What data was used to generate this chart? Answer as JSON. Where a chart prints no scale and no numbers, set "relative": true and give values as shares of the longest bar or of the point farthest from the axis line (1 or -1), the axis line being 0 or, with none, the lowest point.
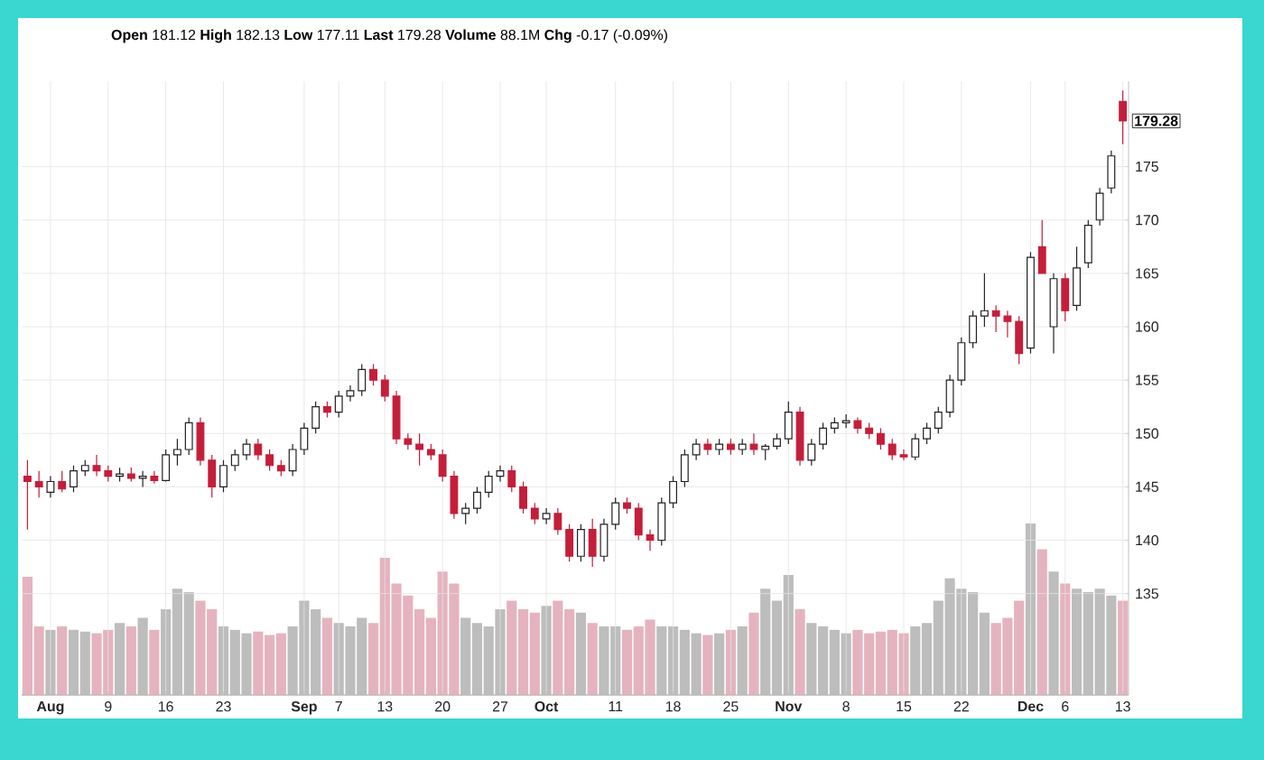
{
  "chart_data": [
    {
      "type": "candlestick",
      "categories": [
        null,
        null,
        "**Aug**",
        null,
        null,
        null,
        null,
        "9",
        null,
        null,
        null,
        null,
        "16",
        null,
        null,
        null,
        null,
        "23",
        null,
        null,
        null,
        null,
        null,
        null,
        "**Sep**",
        null,
        null,
        "7",
        null,
        null,
        null,
        "13",
        null,
        null,
        null,
        null,
        "20",
        null,
        null,
        null,
        null,
        "27",
        null,
        null,
        null,
        "**Oct**",
        null,
        null,
        null,
        null,
        null,
        "11",
        null,
        null,
        null,
        null,
        "18",
        null,
        null,
        null,
        null,
        "25",
        null,
        null,
        null,
        null,
        "**Nov**",
        null,
        null,
        null,
        null,
        "8",
        null,
        null,
        null,
        null,
        "15",
        null,
        null,
        null,
        null,
        "22",
        null,
        null,
        null,
        null,
        null,
        "**Dec**",
        null,
        null,
        "6",
        null,
        null,
        null,
        null,
        "13"
      ],
      "ohlc": [
        [
          146,
          147.5,
          141,
          145.5
        ],
        [
          145.5,
          146.5,
          144,
          145
        ],
        [
          144.5,
          146,
          144,
          145.5
        ],
        [
          145.5,
          146.5,
          144.5,
          144.8
        ],
        [
          145,
          147,
          144.5,
          146.5
        ],
        [
          146.5,
          147.5,
          146,
          147
        ],
        [
          147,
          148,
          146,
          146.5
        ],
        [
          146.5,
          147,
          145.5,
          146
        ],
        [
          146,
          146.8,
          145.5,
          146.2
        ],
        [
          146.2,
          146.8,
          145.5,
          145.8
        ],
        [
          145.8,
          146.5,
          145,
          146
        ],
        [
          146,
          146.5,
          145.3,
          145.6
        ],
        [
          145.6,
          148.5,
          145.5,
          148
        ],
        [
          148,
          149.5,
          147,
          148.5
        ],
        [
          148.5,
          151.5,
          148,
          151
        ],
        [
          151,
          151.5,
          147,
          147.5
        ],
        [
          147.5,
          148,
          144,
          145
        ],
        [
          145,
          147.5,
          144.5,
          147
        ],
        [
          147,
          148.5,
          146.5,
          148
        ],
        [
          148,
          149.5,
          147.5,
          149
        ],
        [
          149,
          149.5,
          147.5,
          148
        ],
        [
          148,
          148.5,
          146.5,
          147
        ],
        [
          147,
          147.5,
          146,
          146.5
        ],
        [
          146.5,
          149,
          146,
          148.5
        ],
        [
          148.5,
          151,
          148,
          150.5
        ],
        [
          150.5,
          153,
          150,
          152.5
        ],
        [
          152.5,
          153,
          151.5,
          152
        ],
        [
          152,
          154,
          151.5,
          153.5
        ],
        [
          153.5,
          154.5,
          153,
          154
        ],
        [
          154,
          156.5,
          153.5,
          156
        ],
        [
          156,
          156.5,
          154.5,
          155
        ],
        [
          155,
          155.5,
          153,
          153.5
        ],
        [
          153.5,
          154,
          149,
          149.5
        ],
        [
          149.5,
          150,
          148.5,
          149
        ],
        [
          149,
          150,
          147,
          148.5
        ],
        [
          148.5,
          149,
          147.5,
          148
        ],
        [
          148,
          148.5,
          145.5,
          146
        ],
        [
          146,
          146.5,
          142,
          142.5
        ],
        [
          142.5,
          143.5,
          141.5,
          143
        ],
        [
          143,
          145,
          142.5,
          144.5
        ],
        [
          144.5,
          146.5,
          144,
          146
        ],
        [
          146,
          147,
          145.5,
          146.5
        ],
        [
          146.5,
          147,
          144.5,
          145
        ],
        [
          145,
          145.5,
          142.5,
          143
        ],
        [
          143,
          143.5,
          141.5,
          142
        ],
        [
          142,
          143,
          141.5,
          142.5
        ],
        [
          142.5,
          143,
          140.5,
          141
        ],
        [
          141,
          141.5,
          138,
          138.5
        ],
        [
          138.5,
          141.5,
          138,
          141
        ],
        [
          141,
          142,
          137.5,
          138.5
        ],
        [
          138.5,
          142,
          138,
          141.5
        ],
        [
          141.5,
          144,
          141,
          143.5
        ],
        [
          143.5,
          144,
          142.5,
          143
        ],
        [
          143,
          143.5,
          140,
          140.5
        ],
        [
          140.5,
          141,
          139,
          140
        ],
        [
          140,
          144,
          139.5,
          143.5
        ],
        [
          143.5,
          146,
          143,
          145.5
        ],
        [
          145.5,
          148.5,
          145,
          148
        ],
        [
          148,
          149.5,
          147.5,
          149
        ],
        [
          149,
          149.5,
          148,
          148.5
        ],
        [
          148.5,
          149.5,
          148,
          149
        ],
        [
          149,
          149.5,
          148,
          148.5
        ],
        [
          148.5,
          149.5,
          148,
          149
        ],
        [
          149,
          150,
          148,
          148.5
        ],
        [
          148.5,
          149,
          147.5,
          148.8
        ],
        [
          148.8,
          150,
          148.5,
          149.5
        ],
        [
          149.5,
          153,
          149,
          152
        ],
        [
          152,
          152.5,
          147,
          147.5
        ],
        [
          147.5,
          149.5,
          147,
          149
        ],
        [
          149,
          151,
          148.5,
          150.5
        ],
        [
          150.5,
          151.5,
          150,
          151
        ],
        [
          151,
          151.8,
          150.5,
          151.2
        ],
        [
          151.2,
          151.5,
          150,
          150.5
        ],
        [
          150.5,
          151,
          149.5,
          150
        ],
        [
          150,
          150.5,
          148.5,
          149
        ],
        [
          149,
          149.5,
          147.5,
          148
        ],
        [
          148,
          148.5,
          147.5,
          147.8
        ],
        [
          147.8,
          150,
          147.5,
          149.5
        ],
        [
          149.5,
          151,
          149,
          150.5
        ],
        [
          150.5,
          152.5,
          150,
          152
        ],
        [
          152,
          155.5,
          151.5,
          155
        ],
        [
          155,
          159,
          154.5,
          158.5
        ],
        [
          158.5,
          161.5,
          158,
          161
        ],
        [
          161,
          165,
          160,
          161.5
        ],
        [
          161.5,
          162,
          159.5,
          161
        ],
        [
          161,
          161.5,
          159,
          160.5
        ],
        [
          160.5,
          161,
          156.5,
          157.5
        ],
        [
          158,
          167,
          157.5,
          166.5
        ],
        [
          167.5,
          170,
          165,
          165
        ],
        [
          160,
          165,
          157.5,
          164.5
        ],
        [
          164.5,
          165,
          160.5,
          161.5
        ],
        [
          162,
          167.5,
          161.5,
          165.5
        ],
        [
          166,
          170,
          165.5,
          169.5
        ],
        [
          170,
          173,
          169.5,
          172.5
        ],
        [
          173,
          176.5,
          172.5,
          176
        ],
        [
          181.12,
          182.13,
          177.11,
          179.28
        ]
      ],
      "colors": [
        "#c41e3a",
        "#c41e3a",
        "#222222",
        "#c41e3a",
        "#222222",
        "#222222",
        "#c41e3a",
        "#c41e3a",
        "#222222",
        "#c41e3a",
        "#222222",
        "#c41e3a",
        "#222222",
        "#222222",
        "#222222",
        "#c41e3a",
        "#c41e3a",
        "#222222",
        "#222222",
        "#222222",
        "#c41e3a",
        "#c41e3a",
        "#c41e3a",
        "#222222",
        "#222222",
        "#222222",
        "#c41e3a",
        "#222222",
        "#222222",
        "#222222",
        "#c41e3a",
        "#c41e3a",
        "#c41e3a",
        "#c41e3a",
        "#c41e3a",
        "#c41e3a",
        "#c41e3a",
        "#c41e3a",
        "#222222",
        "#222222",
        "#222222",
        "#222222",
        "#c41e3a",
        "#c41e3a",
        "#c41e3a",
        "#222222",
        "#c41e3a",
        "#c41e3a",
        "#222222",
        "#c41e3a",
        "#222222",
        "#222222",
        "#c41e3a",
        "#c41e3a",
        "#c41e3a",
        "#222222",
        "#222222",
        "#222222",
        "#222222",
        "#c41e3a",
        "#222222",
        "#c41e3a",
        "#222222",
        "#c41e3a",
        "#222222",
        "#222222",
        "#222222",
        "#c41e3a",
        "#222222",
        "#222222",
        "#222222",
        "#222222",
        "#c41e3a",
        "#c41e3a",
        "#c41e3a",
        "#c41e3a",
        "#c41e3a",
        "#222222",
        "#222222",
        "#222222",
        "#222222",
        "#222222",
        "#222222",
        "#222222",
        "#c41e3a",
        "#c41e3a",
        "#c41e3a",
        "#222222",
        "#c41e3a",
        "#222222",
        "#c41e3a",
        "#222222",
        "#222222",
        "#222222",
        "#222222",
        "#c41e3a"
      ],
      "ylim": [
        125.5,
        183
      ],
      "yticks": [
        135,
        140,
        145,
        150,
        155,
        160,
        165,
        170,
        175
      ],
      "grid": true,
      "annotations": [
        "**Open** 181.12 **High** 182.13 **Low** 177.11 **Last** 179.28 **Volume** 88.1M **Chg** -0.17 (-0.09%)",
        "179.28"
      ]
    },
    {
      "type": "bar",
      "relative": true,
      "categories": [
        null,
        null,
        null,
        null,
        null,
        null,
        null,
        null,
        null,
        null,
        null,
        null,
        null,
        null,
        null,
        null,
        null,
        null,
        null,
        null,
        null,
        null,
        null,
        null,
        null,
        null,
        null,
        null,
        null,
        null,
        null,
        null,
        null,
        null,
        null,
        null,
        null,
        null,
        null,
        null,
        null,
        null,
        null,
        null,
        null,
        null,
        null,
        null,
        null,
        null,
        null,
        null,
        null,
        null,
        null,
        null,
        null,
        null,
        null,
        null,
        null,
        null,
        null,
        null,
        null,
        null,
        null,
        null,
        null,
        null,
        null,
        null,
        null,
        null,
        null,
        null,
        null,
        null,
        null,
        null,
        null,
        null,
        null,
        null,
        null,
        null,
        null,
        null,
        null,
        null,
        null,
        null,
        null,
        null,
        null,
        null
      ],
      "values": [
        0.69,
        0.4,
        0.38,
        0.4,
        0.38,
        0.37,
        0.36,
        0.38,
        0.42,
        0.4,
        0.45,
        0.38,
        0.5,
        0.62,
        0.6,
        0.55,
        0.5,
        0.4,
        0.38,
        0.36,
        0.37,
        0.35,
        0.36,
        0.4,
        0.55,
        0.5,
        0.45,
        0.42,
        0.4,
        0.45,
        0.42,
        0.8,
        0.65,
        0.58,
        0.5,
        0.45,
        0.72,
        0.65,
        0.45,
        0.42,
        0.4,
        0.5,
        0.55,
        0.5,
        0.48,
        0.52,
        0.55,
        0.5,
        0.48,
        0.42,
        0.4,
        0.4,
        0.38,
        0.4,
        0.44,
        0.4,
        0.4,
        0.38,
        0.36,
        0.35,
        0.36,
        0.38,
        0.4,
        0.48,
        0.62,
        0.55,
        0.7,
        0.5,
        0.42,
        0.4,
        0.38,
        0.36,
        0.38,
        0.36,
        0.37,
        0.38,
        0.36,
        0.4,
        0.42,
        0.55,
        0.68,
        0.62,
        0.6,
        0.48,
        0.42,
        0.45,
        0.55,
        1.0,
        0.85,
        0.72,
        0.65,
        0.62,
        0.6,
        0.62,
        0.58,
        0.55
      ],
      "colors": [
        "#e5b3bf",
        "#e5b3bf",
        "#bdbdbd",
        "#e5b3bf",
        "#bdbdbd",
        "#bdbdbd",
        "#e5b3bf",
        "#e5b3bf",
        "#bdbdbd",
        "#e5b3bf",
        "#bdbdbd",
        "#e5b3bf",
        "#bdbdbd",
        "#bdbdbd",
        "#bdbdbd",
        "#e5b3bf",
        "#e5b3bf",
        "#bdbdbd",
        "#bdbdbd",
        "#bdbdbd",
        "#e5b3bf",
        "#e5b3bf",
        "#e5b3bf",
        "#bdbdbd",
        "#bdbdbd",
        "#bdbdbd",
        "#e5b3bf",
        "#bdbdbd",
        "#bdbdbd",
        "#bdbdbd",
        "#e5b3bf",
        "#e5b3bf",
        "#e5b3bf",
        "#e5b3bf",
        "#e5b3bf",
        "#e5b3bf",
        "#e5b3bf",
        "#e5b3bf",
        "#bdbdbd",
        "#bdbdbd",
        "#bdbdbd",
        "#bdbdbd",
        "#e5b3bf",
        "#e5b3bf",
        "#e5b3bf",
        "#bdbdbd",
        "#e5b3bf",
        "#e5b3bf",
        "#bdbdbd",
        "#e5b3bf",
        "#bdbdbd",
        "#bdbdbd",
        "#e5b3bf",
        "#e5b3bf",
        "#e5b3bf",
        "#bdbdbd",
        "#bdbdbd",
        "#bdbdbd",
        "#bdbdbd",
        "#e5b3bf",
        "#bdbdbd",
        "#e5b3bf",
        "#bdbdbd",
        "#e5b3bf",
        "#bdbdbd",
        "#bdbdbd",
        "#bdbdbd",
        "#e5b3bf",
        "#bdbdbd",
        "#bdbdbd",
        "#bdbdbd",
        "#bdbdbd",
        "#e5b3bf",
        "#e5b3bf",
        "#e5b3bf",
        "#e5b3bf",
        "#e5b3bf",
        "#bdbdbd",
        "#bdbdbd",
        "#bdbdbd",
        "#bdbdbd",
        "#bdbdbd",
        "#bdbdbd",
        "#bdbdbd",
        "#e5b3bf",
        "#e5b3bf",
        "#e5b3bf",
        "#bdbdbd",
        "#e5b3bf",
        "#bdbdbd",
        "#e5b3bf",
        "#bdbdbd",
        "#bdbdbd",
        "#bdbdbd",
        "#bdbdbd",
        "#e5b3bf"
      ]
    }
  ]
}
